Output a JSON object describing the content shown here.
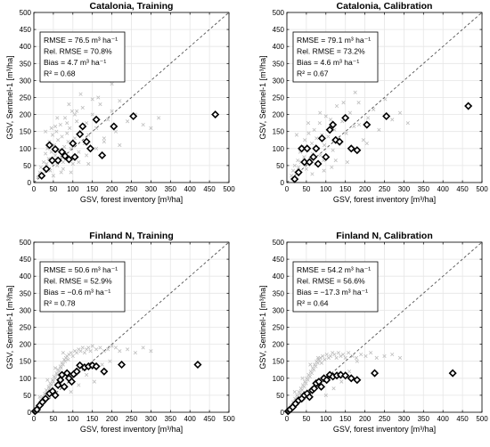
{
  "axes": {
    "xlabel": "GSV, forest inventory [m³/ha]",
    "ylabel": "GSV, Sentinel-1 [m³/ha]",
    "ticks": [
      "0",
      "50",
      "100",
      "150",
      "200",
      "250",
      "300",
      "350",
      "400",
      "450",
      "500"
    ],
    "range": [
      0,
      500
    ],
    "grid": true,
    "one_to_one_line": "dashed"
  },
  "colors": {
    "binned_marker": "#000000",
    "scatter_marker": "#bdbdbd",
    "grid": "#e6e6e6",
    "one_to_one": "#555555"
  },
  "chart_data": [
    {
      "type": "scatter",
      "title": "Catalonia, Training",
      "xlabel": "GSV, forest inventory [m³/ha]",
      "ylabel": "GSV, Sentinel-1 [m³/ha]",
      "xlim": [
        0,
        500
      ],
      "ylim": [
        0,
        500
      ],
      "stats": {
        "rmse": "RMSE = 76.5 m³ ha⁻¹",
        "rel_rmse": "Rel. RMSE = 70.8%",
        "bias": "Bias = 4.7 m³ ha⁻¹",
        "r2": "R² = 0.68"
      },
      "binned_x": [
        20,
        32,
        40,
        47,
        55,
        62,
        72,
        80,
        90,
        100,
        105,
        118,
        125,
        135,
        145,
        160,
        175,
        205,
        255,
        465
      ],
      "binned_y": [
        20,
        40,
        110,
        65,
        98,
        65,
        90,
        78,
        68,
        115,
        75,
        142,
        165,
        120,
        100,
        185,
        80,
        165,
        195,
        200
      ],
      "cloud_x": [
        10,
        15,
        18,
        22,
        25,
        28,
        30,
        33,
        35,
        38,
        40,
        42,
        45,
        48,
        50,
        52,
        55,
        58,
        60,
        62,
        65,
        68,
        70,
        72,
        75,
        78,
        80,
        82,
        85,
        88,
        90,
        92,
        95,
        98,
        100,
        105,
        110,
        115,
        120,
        125,
        130,
        135,
        140,
        150,
        160,
        170,
        180,
        190,
        200,
        210,
        220,
        240,
        260,
        280,
        300,
        320,
        30,
        45,
        60,
        75,
        90,
        105,
        120,
        135,
        150,
        165,
        180,
        200,
        220,
        50,
        70,
        95,
        115,
        140,
        55,
        85,
        110,
        160
      ],
      "cloud_y": [
        15,
        30,
        45,
        25,
        60,
        40,
        85,
        55,
        100,
        70,
        120,
        35,
        90,
        140,
        65,
        110,
        80,
        150,
        50,
        125,
        95,
        170,
        75,
        135,
        60,
        105,
        190,
        85,
        145,
        120,
        70,
        160,
        100,
        210,
        55,
        130,
        180,
        90,
        150,
        220,
        115,
        175,
        140,
        200,
        160,
        230,
        120,
        185,
        210,
        150,
        240,
        180,
        200,
        170,
        160,
        190,
        150,
        160,
        190,
        40,
        230,
        200,
        260,
        80,
        245,
        250,
        130,
        290,
        110,
        20,
        30,
        30,
        60,
        55,
        165,
        175,
        210,
        100
      ]
    },
    {
      "type": "scatter",
      "title": "Catalonia, Calibration",
      "xlabel": "GSV, forest inventory [m³/ha]",
      "ylabel": "GSV, Sentinel-1 [m³/ha]",
      "xlim": [
        0,
        500
      ],
      "ylim": [
        0,
        500
      ],
      "stats": {
        "rmse": "RMSE = 79.1 m³ ha⁻¹",
        "rel_rmse": "Rel. RMSE = 73.2%",
        "bias": "Bias = 4.6 m³ ha⁻¹",
        "r2": "R² = 0.67"
      },
      "binned_x": [
        20,
        30,
        38,
        45,
        52,
        58,
        68,
        75,
        80,
        90,
        100,
        110,
        118,
        125,
        135,
        150,
        165,
        180,
        205,
        255,
        465
      ],
      "binned_y": [
        10,
        30,
        100,
        60,
        100,
        60,
        75,
        100,
        55,
        130,
        75,
        155,
        170,
        125,
        120,
        190,
        100,
        95,
        170,
        195,
        225
      ],
      "cloud_x": [
        12,
        16,
        20,
        24,
        28,
        30,
        34,
        36,
        40,
        44,
        46,
        50,
        54,
        56,
        60,
        64,
        66,
        70,
        74,
        76,
        80,
        84,
        86,
        90,
        94,
        96,
        100,
        106,
        112,
        118,
        122,
        128,
        134,
        142,
        152,
        162,
        172,
        184,
        196,
        208,
        222,
        236,
        252,
        270,
        290,
        310,
        25,
        55,
        85,
        115,
        145,
        175,
        205,
        65,
        95,
        125,
        155,
        185
      ],
      "cloud_y": [
        20,
        35,
        50,
        30,
        65,
        45,
        90,
        60,
        105,
        75,
        125,
        40,
        95,
        145,
        70,
        115,
        85,
        155,
        55,
        130,
        100,
        175,
        80,
        140,
        65,
        110,
        195,
        135,
        185,
        95,
        155,
        225,
        120,
        180,
        145,
        205,
        165,
        235,
        125,
        190,
        215,
        155,
        245,
        185,
        205,
        175,
        140,
        175,
        205,
        45,
        235,
        265,
        115,
        25,
        35,
        65,
        60,
        170
      ]
    },
    {
      "type": "scatter",
      "title": "Finland N, Training",
      "xlabel": "GSV, forest inventory [m³/ha]",
      "ylabel": "GSV, Sentinel-1 [m³/ha]",
      "xlim": [
        0,
        500
      ],
      "ylim": [
        0,
        500
      ],
      "stats": {
        "rmse": "RMSE = 50.6 m³ ha⁻¹",
        "rel_rmse": "Rel. RMSE = 52.9%",
        "bias": "Bias = −0.6 m³ ha⁻¹",
        "r2": "R² = 0.78"
      },
      "binned_x": [
        3,
        8,
        15,
        22,
        30,
        40,
        48,
        55,
        62,
        68,
        72,
        78,
        85,
        90,
        97,
        102,
        110,
        118,
        130,
        140,
        150,
        160,
        180,
        225,
        420
      ],
      "binned_y": [
        3,
        8,
        20,
        30,
        40,
        55,
        62,
        50,
        80,
        95,
        110,
        75,
        115,
        100,
        90,
        112,
        120,
        138,
        132,
        135,
        138,
        135,
        120,
        140,
        140
      ],
      "cloud_x": [
        5,
        8,
        10,
        12,
        15,
        18,
        20,
        22,
        25,
        28,
        30,
        32,
        35,
        38,
        40,
        42,
        45,
        48,
        50,
        52,
        55,
        58,
        60,
        62,
        65,
        68,
        70,
        72,
        75,
        78,
        80,
        82,
        85,
        88,
        90,
        95,
        100,
        105,
        110,
        115,
        120,
        125,
        130,
        135,
        140,
        145,
        150,
        160,
        170,
        180,
        190,
        200,
        210,
        220,
        240,
        260,
        280,
        300,
        15,
        35,
        55,
        75,
        95,
        115,
        135,
        155,
        175,
        195
      ],
      "cloud_y": [
        10,
        15,
        5,
        25,
        20,
        35,
        30,
        45,
        40,
        55,
        50,
        65,
        60,
        75,
        70,
        85,
        80,
        95,
        90,
        105,
        100,
        115,
        110,
        125,
        120,
        135,
        130,
        145,
        140,
        155,
        150,
        160,
        165,
        155,
        170,
        175,
        165,
        180,
        175,
        185,
        180,
        190,
        175,
        185,
        190,
        180,
        195,
        185,
        190,
        180,
        185,
        195,
        190,
        180,
        185,
        175,
        190,
        180,
        45,
        95,
        130,
        175,
        60,
        80,
        110,
        90,
        140,
        150
      ]
    },
    {
      "type": "scatter",
      "title": "Finland N, Calibration",
      "xlabel": "GSV, forest inventory [m³/ha]",
      "ylabel": "GSV, Sentinel-1 [m³/ha]",
      "xlim": [
        0,
        500
      ],
      "ylim": [
        0,
        500
      ],
      "stats": {
        "rmse": "RMSE = 54.2 m³ ha⁻¹",
        "rel_rmse": "Rel. RMSE = 56.6%",
        "bias": "Bias = −17.3 m³ ha⁻¹",
        "r2": "R² = 0.64"
      },
      "binned_x": [
        3,
        8,
        15,
        22,
        30,
        38,
        45,
        52,
        58,
        65,
        70,
        75,
        82,
        88,
        95,
        102,
        110,
        118,
        128,
        138,
        150,
        165,
        180,
        225,
        425
      ],
      "binned_y": [
        3,
        8,
        15,
        25,
        35,
        40,
        50,
        55,
        45,
        65,
        70,
        85,
        90,
        75,
        100,
        95,
        110,
        105,
        108,
        110,
        108,
        100,
        95,
        115,
        115
      ],
      "cloud_x": [
        6,
        9,
        11,
        14,
        16,
        19,
        21,
        24,
        26,
        29,
        31,
        34,
        36,
        39,
        41,
        44,
        46,
        49,
        51,
        54,
        56,
        59,
        61,
        64,
        66,
        69,
        71,
        74,
        76,
        79,
        81,
        84,
        86,
        89,
        92,
        97,
        102,
        107,
        112,
        117,
        122,
        127,
        132,
        138,
        144,
        150,
        158,
        168,
        178,
        190,
        202,
        215,
        230,
        250,
        270,
        290,
        20,
        40,
        60,
        80,
        100,
        120,
        140,
        160,
        180
      ],
      "cloud_y": [
        12,
        8,
        20,
        18,
        30,
        28,
        40,
        35,
        50,
        45,
        60,
        55,
        70,
        65,
        80,
        75,
        90,
        85,
        100,
        95,
        110,
        105,
        120,
        115,
        130,
        125,
        140,
        135,
        150,
        145,
        155,
        150,
        160,
        145,
        165,
        155,
        170,
        160,
        165,
        175,
        170,
        160,
        175,
        165,
        170,
        160,
        175,
        165,
        160,
        170,
        165,
        175,
        160,
        165,
        170,
        160,
        60,
        100,
        140,
        160,
        50,
        70,
        90,
        120,
        150
      ]
    }
  ]
}
